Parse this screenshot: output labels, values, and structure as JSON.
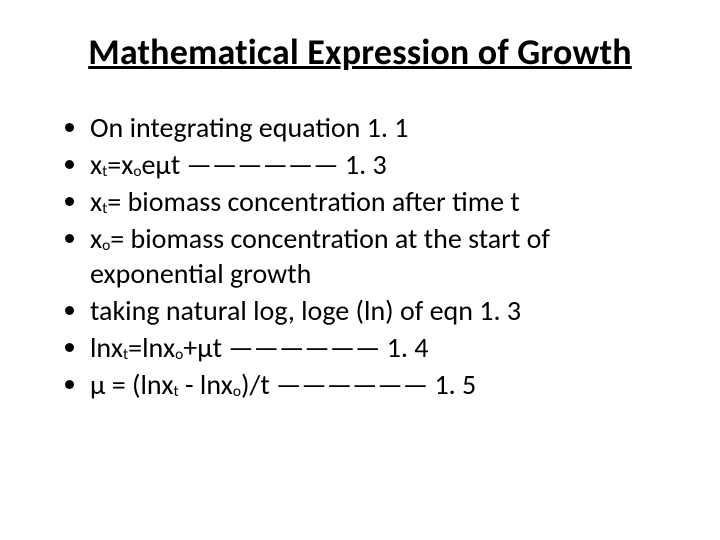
{
  "slide": {
    "title": "Mathematical Expression of Growth",
    "title_fontsize": 36,
    "bullet_fontsize": 28,
    "text_color": "#000000",
    "background_color": "#ffffff",
    "bullets": [
      {
        "html": "On integrating equation 1. 1"
      },
      {
        "html": "x<span class=\"sub\">t</span>=x<span class=\"sub\">o</span>eμt —————— 1. 3"
      },
      {
        "html": "x<span class=\"sub\">t</span>= biomass concentration after time t"
      },
      {
        "html": "x<span class=\"sub\">o</span>= biomass concentration at the start of exponential growth"
      },
      {
        "html": "taking natural log, loge (ln) of eqn 1. 3"
      },
      {
        "html": "lnx<span class=\"sub\">t</span>=lnx<span class=\"sub\">o</span>+μt —————— 1. 4"
      },
      {
        "html": "μ = (lnx<span class=\"sub\">t</span> - lnx<span class=\"sub\">o</span>)/t —————— 1. 5"
      }
    ]
  }
}
